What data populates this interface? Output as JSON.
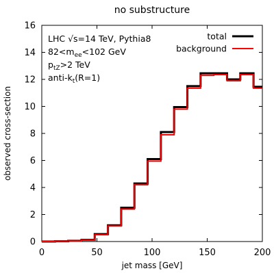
{
  "chart_data": {
    "type": "line",
    "title": "no substructure",
    "xlabel": "jet mass [GeV]",
    "ylabel": "observed cross-section",
    "xlim": [
      0,
      200
    ],
    "ylim": [
      0,
      16
    ],
    "x_ticks": [
      "0",
      "50",
      "100",
      "150",
      "200"
    ],
    "y_ticks": [
      "0",
      "2",
      "4",
      "6",
      "8",
      "10",
      "12",
      "14",
      "16"
    ],
    "grid": false,
    "legend_position": "top-right",
    "annotations": [
      {
        "text": "LHC √s=14 TeV, Pythia8"
      },
      {
        "main": "82<m",
        "sub": "ee",
        "rest": "<102 GeV"
      },
      {
        "main": "p",
        "sub": "tZ",
        "rest": ">2 TeV"
      },
      {
        "main": "anti-k",
        "sub": "t",
        "rest": "(R=1)"
      }
    ],
    "bin_edges": [
      0,
      12,
      24,
      36,
      48,
      60,
      72,
      84,
      96,
      108,
      120,
      132,
      144,
      156,
      168,
      180,
      192,
      200
    ],
    "series": [
      {
        "name": "total",
        "color": "#000000",
        "values": [
          0.0,
          0.02,
          0.05,
          0.12,
          0.55,
          1.2,
          2.5,
          4.3,
          6.1,
          8.1,
          9.95,
          11.5,
          12.45,
          12.45,
          12.0,
          12.45,
          11.45
        ]
      },
      {
        "name": "background",
        "color": "#ff0000",
        "values": [
          0.0,
          0.02,
          0.04,
          0.1,
          0.5,
          1.15,
          2.4,
          4.2,
          5.95,
          7.9,
          9.8,
          11.35,
          12.3,
          12.35,
          11.9,
          12.35,
          11.35
        ]
      }
    ]
  }
}
